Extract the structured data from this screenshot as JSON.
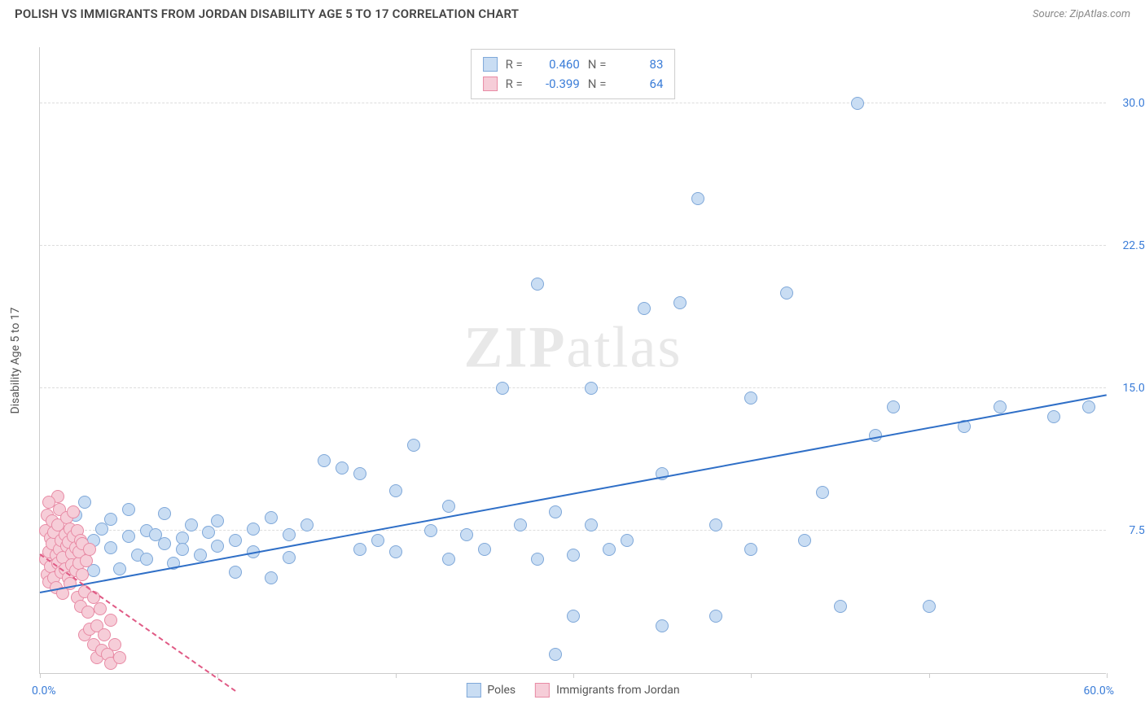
{
  "header": {
    "title": "POLISH VS IMMIGRANTS FROM JORDAN DISABILITY AGE 5 TO 17 CORRELATION CHART",
    "source_prefix": "Source: ",
    "source_name": "ZipAtlas.com"
  },
  "watermark": {
    "bold": "ZIP",
    "light": "atlas"
  },
  "chart": {
    "type": "scatter",
    "xlim": [
      0,
      60
    ],
    "ylim": [
      0,
      33
    ],
    "y_axis_title": "Disability Age 5 to 17",
    "x_ticks": [
      0,
      10,
      20,
      30,
      40,
      50,
      60
    ],
    "y_gridlines": [
      7.5,
      15.0,
      22.5,
      30.0
    ],
    "y_tick_labels": [
      "7.5%",
      "15.0%",
      "22.5%",
      "30.0%"
    ],
    "x_label_min": "0.0%",
    "x_label_max": "60.0%",
    "background_color": "#ffffff",
    "grid_color": "#dddddd",
    "axis_color": "#cccccc",
    "label_color": "#3b7dd8",
    "marker_radius": 8,
    "marker_stroke_width": 1.5,
    "series": [
      {
        "name": "Poles",
        "fill": "#c9ddf3",
        "stroke": "#7fa8d9",
        "line_color": "#2f6fc7",
        "R": "0.460",
        "N": "83",
        "trend": {
          "x1": 0,
          "y1": 4.2,
          "x2": 60,
          "y2": 14.6,
          "dashed": false
        },
        "points": [
          [
            1,
            6.5
          ],
          [
            1.5,
            7.2
          ],
          [
            2,
            6.8
          ],
          [
            2,
            8.3
          ],
          [
            2.5,
            6.0
          ],
          [
            2.5,
            9.0
          ],
          [
            3,
            7.0
          ],
          [
            3,
            5.4
          ],
          [
            3.5,
            7.6
          ],
          [
            4,
            6.6
          ],
          [
            4,
            8.1
          ],
          [
            4.5,
            5.5
          ],
          [
            5,
            7.2
          ],
          [
            5,
            8.6
          ],
          [
            5.5,
            6.2
          ],
          [
            6,
            7.5
          ],
          [
            6,
            6.0
          ],
          [
            6.5,
            7.3
          ],
          [
            7,
            6.8
          ],
          [
            7,
            8.4
          ],
          [
            7.5,
            5.8
          ],
          [
            8,
            7.1
          ],
          [
            8,
            6.5
          ],
          [
            8.5,
            7.8
          ],
          [
            9,
            6.2
          ],
          [
            9.5,
            7.4
          ],
          [
            10,
            6.7
          ],
          [
            10,
            8.0
          ],
          [
            11,
            7.0
          ],
          [
            11,
            5.3
          ],
          [
            12,
            7.6
          ],
          [
            12,
            6.4
          ],
          [
            13,
            8.2
          ],
          [
            13,
            5.0
          ],
          [
            14,
            7.3
          ],
          [
            14,
            6.1
          ],
          [
            15,
            7.8
          ],
          [
            16,
            11.2
          ],
          [
            17,
            10.8
          ],
          [
            18,
            6.5
          ],
          [
            18,
            10.5
          ],
          [
            19,
            7.0
          ],
          [
            20,
            6.4
          ],
          [
            20,
            9.6
          ],
          [
            21,
            12.0
          ],
          [
            22,
            7.5
          ],
          [
            23,
            6.0
          ],
          [
            23,
            8.8
          ],
          [
            24,
            7.3
          ],
          [
            25,
            6.5
          ],
          [
            26,
            15.0
          ],
          [
            27,
            7.8
          ],
          [
            28,
            6.0
          ],
          [
            28,
            20.5
          ],
          [
            29,
            1.0
          ],
          [
            29,
            8.5
          ],
          [
            30,
            6.2
          ],
          [
            30,
            3.0
          ],
          [
            31,
            7.8
          ],
          [
            31,
            15.0
          ],
          [
            32,
            6.5
          ],
          [
            33,
            7.0
          ],
          [
            34,
            19.2
          ],
          [
            35,
            2.5
          ],
          [
            35,
            10.5
          ],
          [
            36,
            19.5
          ],
          [
            37,
            25.0
          ],
          [
            38,
            3.0
          ],
          [
            38,
            7.8
          ],
          [
            40,
            6.5
          ],
          [
            40,
            14.5
          ],
          [
            42,
            20.0
          ],
          [
            43,
            7.0
          ],
          [
            44,
            9.5
          ],
          [
            45,
            3.5
          ],
          [
            46,
            30.0
          ],
          [
            47,
            12.5
          ],
          [
            48,
            14.0
          ],
          [
            50,
            3.5
          ],
          [
            52,
            13.0
          ],
          [
            54,
            14.0
          ],
          [
            57,
            13.5
          ],
          [
            59,
            14.0
          ]
        ]
      },
      {
        "name": "Immigrants from Jordan",
        "fill": "#f6cdd8",
        "stroke": "#e88ba5",
        "line_color": "#e05a85",
        "R": "-0.399",
        "N": "64",
        "trend": {
          "x1": 0,
          "y1": 6.2,
          "x2": 11,
          "y2": -1.0,
          "dashed": true
        },
        "points": [
          [
            0.3,
            6.0
          ],
          [
            0.3,
            7.5
          ],
          [
            0.4,
            5.2
          ],
          [
            0.4,
            8.3
          ],
          [
            0.5,
            6.4
          ],
          [
            0.5,
            4.8
          ],
          [
            0.6,
            7.1
          ],
          [
            0.6,
            5.6
          ],
          [
            0.7,
            6.8
          ],
          [
            0.7,
            8.0
          ],
          [
            0.8,
            5.0
          ],
          [
            0.8,
            7.4
          ],
          [
            0.9,
            6.2
          ],
          [
            0.9,
            4.5
          ],
          [
            1.0,
            7.8
          ],
          [
            1.0,
            5.8
          ],
          [
            1.1,
            6.5
          ],
          [
            1.1,
            8.6
          ],
          [
            1.2,
            5.3
          ],
          [
            1.2,
            7.0
          ],
          [
            1.3,
            6.1
          ],
          [
            1.3,
            4.2
          ],
          [
            1.4,
            7.3
          ],
          [
            1.4,
            5.5
          ],
          [
            1.5,
            6.7
          ],
          [
            1.5,
            8.2
          ],
          [
            1.6,
            5.0
          ],
          [
            1.6,
            6.9
          ],
          [
            1.7,
            7.6
          ],
          [
            1.7,
            4.7
          ],
          [
            1.8,
            6.3
          ],
          [
            1.8,
            5.7
          ],
          [
            1.9,
            7.2
          ],
          [
            1.9,
            8.5
          ],
          [
            2.0,
            5.4
          ],
          [
            2.0,
            6.6
          ],
          [
            2.1,
            4.0
          ],
          [
            2.1,
            7.5
          ],
          [
            2.2,
            5.8
          ],
          [
            2.2,
            6.4
          ],
          [
            2.3,
            3.5
          ],
          [
            2.3,
            7.0
          ],
          [
            2.4,
            5.2
          ],
          [
            2.4,
            6.8
          ],
          [
            2.5,
            4.3
          ],
          [
            2.5,
            2.0
          ],
          [
            2.6,
            5.9
          ],
          [
            2.7,
            3.2
          ],
          [
            2.8,
            2.3
          ],
          [
            2.8,
            6.5
          ],
          [
            3.0,
            1.5
          ],
          [
            3.0,
            4.0
          ],
          [
            3.2,
            0.8
          ],
          [
            3.2,
            2.5
          ],
          [
            3.4,
            3.4
          ],
          [
            3.5,
            1.2
          ],
          [
            3.6,
            2.0
          ],
          [
            3.8,
            1.0
          ],
          [
            4.0,
            0.5
          ],
          [
            4.0,
            2.8
          ],
          [
            4.2,
            1.5
          ],
          [
            4.5,
            0.8
          ],
          [
            1.0,
            9.3
          ],
          [
            0.5,
            9.0
          ]
        ]
      }
    ]
  },
  "stats_legend": {
    "r_label": "R =",
    "n_label": "N ="
  },
  "bottom_legend": {
    "items": [
      "Poles",
      "Immigrants from Jordan"
    ]
  }
}
